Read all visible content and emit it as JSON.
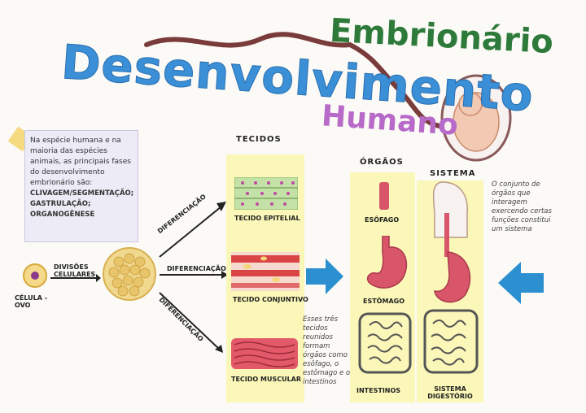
{
  "title": {
    "line1": "Desenvolvimento",
    "line2": "Embrionário",
    "line3": "Humano"
  },
  "note": {
    "text": "Na espécie humana e na maioria das espécies animais, as principais fases do desenvolvimento embrionário são:",
    "phases": [
      "CLIVAGEM/SEGMENTAÇÃO;",
      "GASTRULAÇÃO;",
      "ORGANOGÊNESE"
    ]
  },
  "cell": {
    "label": "CÉLULA - OVO",
    "divisions": "DIVISÕES CELULARES"
  },
  "arrows": {
    "diff1": "DIFERENCIAÇÃO",
    "diff2": "DIFERENCIAÇÃO",
    "diff3": "DIFERENCIAÇÃO"
  },
  "tissues": {
    "heading": "TECIDOS",
    "epithelial": "TECIDO EPITELIAL",
    "connective": "TECIDO CONJUNTIVO",
    "muscular": "TECIDO MUSCULAR"
  },
  "organs": {
    "heading": "ÓRGÃOS",
    "esophagus": "ESÔFAGO",
    "stomach": "ESTÔMAGO",
    "intestines": "INTESTINOS",
    "note": "Esses três tecidos reunidos formam órgãos como o esôfago, o estômago e os intestinos"
  },
  "system": {
    "heading": "SISTEMA",
    "label": "SISTEMA DIGESTÓRIO",
    "note": "O conjunto de órgãos que interagem exercendo certas funções constitui um sistema"
  },
  "colors": {
    "blue": "#3a8fd6",
    "green": "#2d7a3a",
    "purple": "#b86ac9",
    "pink": "#d9566a",
    "arrow": "#2b8fd0"
  }
}
